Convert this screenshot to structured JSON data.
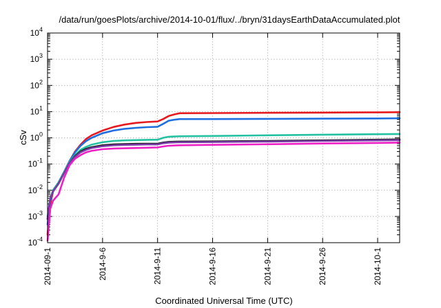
{
  "chart_data": {
    "type": "line",
    "title": "/data/run/goesPlots/archive/2014-10-01/flux/../bryn/31daysEarthDataAccumulated.plot",
    "xlabel": "Coordinated Universal Time (UTC)",
    "ylabel": "cSv",
    "y_scale": "log",
    "ylim_exponent": [
      -4,
      4
    ],
    "y_ticks": [
      {
        "base": "10",
        "exp": "-4"
      },
      {
        "base": "10",
        "exp": "-3"
      },
      {
        "base": "10",
        "exp": "-2"
      },
      {
        "base": "10",
        "exp": "-1"
      },
      {
        "base": "10",
        "exp": "0"
      },
      {
        "base": "10",
        "exp": "1"
      },
      {
        "base": "10",
        "exp": "2"
      },
      {
        "base": "10",
        "exp": "3"
      },
      {
        "base": "10",
        "exp": "4"
      }
    ],
    "x_domain": [
      "2014-09-01",
      "2014-10-03"
    ],
    "x_ticks": [
      "2014-09-1",
      "2014-9-6",
      "2014-9-11",
      "2014-9-16",
      "2014-9-21",
      "2014-9-26",
      "2014-10-1"
    ],
    "x_tick_dates": [
      "2014-09-01",
      "2014-09-06",
      "2014-09-11",
      "2014-09-16",
      "2014-09-21",
      "2014-09-26",
      "2014-10-01"
    ],
    "grid": true,
    "legend": "none",
    "series": [
      {
        "color": "#e8191e",
        "points": [
          [
            "2014-09-01",
            0.0002
          ],
          [
            "2014-09-01T06",
            0.003
          ],
          [
            "2014-09-01T12",
            0.009
          ],
          [
            "2014-09-02",
            0.02
          ],
          [
            "2014-09-02T12",
            0.05
          ],
          [
            "2014-09-03",
            0.13
          ],
          [
            "2014-09-03T12",
            0.3
          ],
          [
            "2014-09-04",
            0.55
          ],
          [
            "2014-09-04T12",
            0.9
          ],
          [
            "2014-09-05",
            1.25
          ],
          [
            "2014-09-06",
            1.9
          ],
          [
            "2014-09-07",
            2.6
          ],
          [
            "2014-09-08",
            3.2
          ],
          [
            "2014-09-09",
            3.7
          ],
          [
            "2014-09-10",
            4.0
          ],
          [
            "2014-09-11",
            4.2
          ],
          [
            "2014-09-11T12",
            5.2
          ],
          [
            "2014-09-12",
            6.8
          ],
          [
            "2014-09-12T12",
            7.8
          ],
          [
            "2014-09-13",
            8.7
          ],
          [
            "2014-09-16",
            8.8
          ],
          [
            "2014-09-21",
            9.0
          ],
          [
            "2014-09-26",
            9.2
          ],
          [
            "2014-10-01",
            9.4
          ],
          [
            "2014-10-03",
            9.5
          ]
        ]
      },
      {
        "color": "#1f6ee0",
        "points": [
          [
            "2014-09-01",
            0.0005
          ],
          [
            "2014-09-01T06",
            0.004
          ],
          [
            "2014-09-01T12",
            0.01
          ],
          [
            "2014-09-02",
            0.02
          ],
          [
            "2014-09-02T12",
            0.05
          ],
          [
            "2014-09-03",
            0.13
          ],
          [
            "2014-09-03T12",
            0.28
          ],
          [
            "2014-09-04",
            0.5
          ],
          [
            "2014-09-04T12",
            0.75
          ],
          [
            "2014-09-05",
            1.0
          ],
          [
            "2014-09-06",
            1.5
          ],
          [
            "2014-09-07",
            1.9
          ],
          [
            "2014-09-08",
            2.2
          ],
          [
            "2014-09-09",
            2.4
          ],
          [
            "2014-09-10",
            2.55
          ],
          [
            "2014-09-11",
            2.65
          ],
          [
            "2014-09-11T12",
            3.4
          ],
          [
            "2014-09-12",
            4.5
          ],
          [
            "2014-09-12T12",
            4.9
          ],
          [
            "2014-09-13",
            5.2
          ],
          [
            "2014-09-16",
            5.2
          ],
          [
            "2014-09-21",
            5.3
          ],
          [
            "2014-09-26",
            5.4
          ],
          [
            "2014-10-01",
            5.5
          ],
          [
            "2014-10-03",
            5.55
          ]
        ]
      },
      {
        "color": "#22c1a1",
        "points": [
          [
            "2014-09-01",
            0.001
          ],
          [
            "2014-09-01T06",
            0.005
          ],
          [
            "2014-09-01T12",
            0.01
          ],
          [
            "2014-09-02",
            0.02
          ],
          [
            "2014-09-02T12",
            0.05
          ],
          [
            "2014-09-03",
            0.12
          ],
          [
            "2014-09-03T12",
            0.22
          ],
          [
            "2014-09-04",
            0.35
          ],
          [
            "2014-09-04T12",
            0.45
          ],
          [
            "2014-09-05",
            0.55
          ],
          [
            "2014-09-06",
            0.68
          ],
          [
            "2014-09-07",
            0.76
          ],
          [
            "2014-09-08",
            0.8
          ],
          [
            "2014-09-09",
            0.82
          ],
          [
            "2014-09-10",
            0.84
          ],
          [
            "2014-09-11",
            0.85
          ],
          [
            "2014-09-11T12",
            1.0
          ],
          [
            "2014-09-12",
            1.1
          ],
          [
            "2014-09-13",
            1.15
          ],
          [
            "2014-09-16",
            1.18
          ],
          [
            "2014-09-21",
            1.25
          ],
          [
            "2014-09-26",
            1.32
          ],
          [
            "2014-10-01",
            1.38
          ],
          [
            "2014-10-03",
            1.4
          ]
        ]
      },
      {
        "color": "#1a1a1a",
        "points": [
          [
            "2014-09-01",
            0.0008
          ],
          [
            "2014-09-01T06",
            0.005
          ],
          [
            "2014-09-01T12",
            0.009
          ],
          [
            "2014-09-02",
            0.018
          ],
          [
            "2014-09-02T12",
            0.045
          ],
          [
            "2014-09-03",
            0.11
          ],
          [
            "2014-09-03T12",
            0.2
          ],
          [
            "2014-09-04",
            0.3
          ],
          [
            "2014-09-04T12",
            0.38
          ],
          [
            "2014-09-05",
            0.44
          ],
          [
            "2014-09-06",
            0.52
          ],
          [
            "2014-09-07",
            0.56
          ],
          [
            "2014-09-08",
            0.58
          ],
          [
            "2014-09-09",
            0.59
          ],
          [
            "2014-09-10",
            0.6
          ],
          [
            "2014-09-11",
            0.6
          ],
          [
            "2014-09-11T12",
            0.66
          ],
          [
            "2014-09-12",
            0.7
          ],
          [
            "2014-09-13",
            0.72
          ],
          [
            "2014-09-16",
            0.73
          ],
          [
            "2014-09-21",
            0.76
          ],
          [
            "2014-09-26",
            0.8
          ],
          [
            "2014-10-01",
            0.85
          ],
          [
            "2014-10-03",
            0.87
          ]
        ]
      },
      {
        "color": "#7a3aa8",
        "points": [
          [
            "2014-09-01",
            0.0008
          ],
          [
            "2014-09-01T06",
            0.005
          ],
          [
            "2014-09-01T12",
            0.009
          ],
          [
            "2014-09-02",
            0.018
          ],
          [
            "2014-09-02T12",
            0.045
          ],
          [
            "2014-09-03",
            0.11
          ],
          [
            "2014-09-03T12",
            0.19
          ],
          [
            "2014-09-04",
            0.28
          ],
          [
            "2014-09-04T12",
            0.35
          ],
          [
            "2014-09-05",
            0.41
          ],
          [
            "2014-09-06",
            0.48
          ],
          [
            "2014-09-07",
            0.52
          ],
          [
            "2014-09-08",
            0.54
          ],
          [
            "2014-09-09",
            0.55
          ],
          [
            "2014-09-10",
            0.56
          ],
          [
            "2014-09-11",
            0.56
          ],
          [
            "2014-09-11T12",
            0.62
          ],
          [
            "2014-09-12",
            0.66
          ],
          [
            "2014-09-13",
            0.68
          ],
          [
            "2014-09-16",
            0.69
          ],
          [
            "2014-09-21",
            0.72
          ],
          [
            "2014-09-26",
            0.76
          ],
          [
            "2014-10-01",
            0.8
          ],
          [
            "2014-10-03",
            0.82
          ]
        ]
      },
      {
        "color": "#ee1fc5",
        "points": [
          [
            "2014-09-01",
            0.00012
          ],
          [
            "2014-09-01T06",
            0.002
          ],
          [
            "2014-09-01T12",
            0.004
          ],
          [
            "2014-09-02",
            0.007
          ],
          [
            "2014-09-02T12",
            0.03
          ],
          [
            "2014-09-03",
            0.09
          ],
          [
            "2014-09-03T12",
            0.16
          ],
          [
            "2014-09-04",
            0.22
          ],
          [
            "2014-09-04T12",
            0.28
          ],
          [
            "2014-09-05",
            0.32
          ],
          [
            "2014-09-06",
            0.37
          ],
          [
            "2014-09-07",
            0.39
          ],
          [
            "2014-09-08",
            0.4
          ],
          [
            "2014-09-09",
            0.41
          ],
          [
            "2014-09-10",
            0.42
          ],
          [
            "2014-09-11",
            0.43
          ],
          [
            "2014-09-11T12",
            0.47
          ],
          [
            "2014-09-12",
            0.5
          ],
          [
            "2014-09-13",
            0.52
          ],
          [
            "2014-09-16",
            0.54
          ],
          [
            "2014-09-21",
            0.57
          ],
          [
            "2014-09-26",
            0.61
          ],
          [
            "2014-10-01",
            0.64
          ],
          [
            "2014-10-03",
            0.66
          ]
        ]
      }
    ]
  }
}
